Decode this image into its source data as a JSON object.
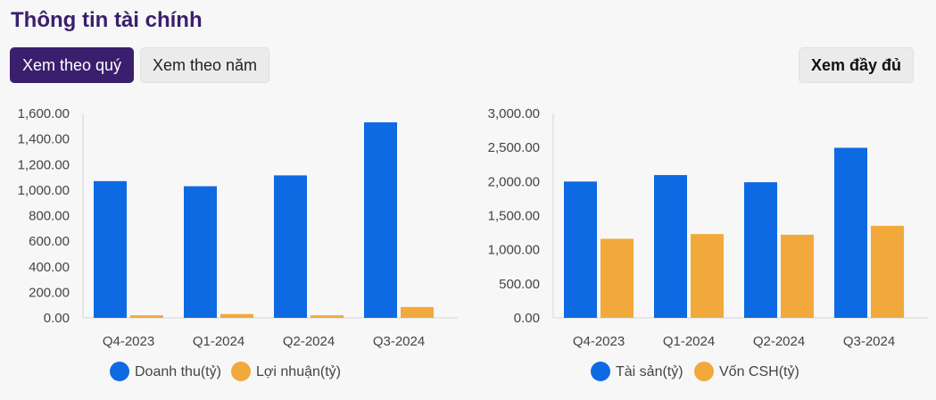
{
  "header": {
    "title": "Thông tin tài chính"
  },
  "buttons": {
    "quarter": "Xem theo quý",
    "year": "Xem theo năm",
    "full": "Xem đầy đủ"
  },
  "colors": {
    "primary": "#3a1f6e",
    "blue": "#0e6ae3",
    "orange": "#f2a93b"
  },
  "chart_data": [
    {
      "type": "bar",
      "categories": [
        "Q4-2023",
        "Q1-2024",
        "Q2-2024",
        "Q3-2024"
      ],
      "series": [
        {
          "name": "Doanh thu(tỷ)",
          "color": "#0e6ae3",
          "values": [
            1070,
            1030,
            1115,
            1530
          ]
        },
        {
          "name": "Lợi nhuận(tỷ)",
          "color": "#f2a93b",
          "values": [
            20,
            30,
            20,
            85
          ]
        }
      ],
      "ylim": [
        0,
        1600
      ],
      "yticks": [
        "0.00",
        "200.00",
        "400.00",
        "600.00",
        "800.00",
        "1,000.00",
        "1,200.00",
        "1,400.00",
        "1,600.00"
      ],
      "legend": "bottom",
      "grid": false
    },
    {
      "type": "bar",
      "categories": [
        "Q4-2023",
        "Q1-2024",
        "Q2-2024",
        "Q3-2024"
      ],
      "series": [
        {
          "name": "Tài sản(tỷ)",
          "color": "#0e6ae3",
          "values": [
            2000,
            2095,
            1990,
            2495
          ]
        },
        {
          "name": "Vốn CSH(tỷ)",
          "color": "#f2a93b",
          "values": [
            1160,
            1230,
            1220,
            1350
          ]
        }
      ],
      "ylim": [
        0,
        3000
      ],
      "yticks": [
        "0.00",
        "500.00",
        "1,000.00",
        "1,500.00",
        "2,000.00",
        "2,500.00",
        "3,000.00"
      ],
      "legend": "bottom",
      "grid": false
    }
  ]
}
